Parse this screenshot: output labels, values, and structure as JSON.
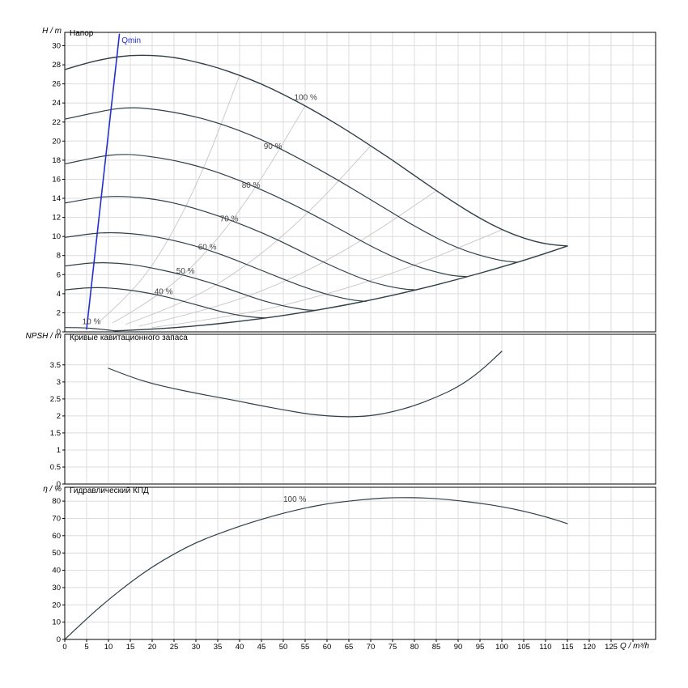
{
  "colors": {
    "background": "#ffffff",
    "axis": "#000000",
    "grid": "#dcdcdc",
    "curve": "#2e3f47",
    "iso": "#c6c6c6",
    "qmin": "#2231cc",
    "label": "#444444"
  },
  "x_axis": {
    "label": "Q / m³/h",
    "ticks": [
      0,
      5,
      10,
      15,
      20,
      25,
      30,
      35,
      40,
      45,
      50,
      55,
      60,
      65,
      70,
      75,
      80,
      85,
      90,
      95,
      100,
      105,
      110,
      115,
      120,
      125
    ],
    "grid_max": 130
  },
  "chart_data": [
    {
      "id": "head",
      "type": "line",
      "title": "Напор",
      "ylabel": "H / m",
      "ylim": [
        0,
        31.4
      ],
      "yticks": [
        0,
        2,
        4,
        6,
        8,
        10,
        12,
        14,
        16,
        18,
        20,
        22,
        24,
        26,
        28,
        30
      ],
      "series": [
        {
          "name": "iso-efficiency-1",
          "role": "iso",
          "points": [
            [
              8,
              1.1
            ],
            [
              16,
              4.3
            ],
            [
              24,
              9.7
            ],
            [
              32,
              17.2
            ],
            [
              40,
              26.9
            ]
          ]
        },
        {
          "name": "iso-efficiency-2",
          "role": "iso",
          "points": [
            [
              11,
              0.95
            ],
            [
              22,
              3.8
            ],
            [
              33,
              8.5
            ],
            [
              44,
              15.2
            ],
            [
              55,
              23.7
            ]
          ]
        },
        {
          "name": "iso-efficiency-3",
          "role": "iso",
          "points": [
            [
              14,
              0.8
            ],
            [
              28,
              3.1
            ],
            [
              42,
              7.0
            ],
            [
              56,
              12.5
            ],
            [
              70,
              19.5
            ]
          ]
        },
        {
          "name": "iso-efficiency-4",
          "role": "iso",
          "points": [
            [
              17,
              0.6
            ],
            [
              34,
              2.4
            ],
            [
              51,
              5.3
            ],
            [
              68,
              9.5
            ],
            [
              85,
              14.8
            ]
          ]
        },
        {
          "name": "iso-efficiency-5",
          "role": "iso",
          "points": [
            [
              20,
              0.45
            ],
            [
              40,
              1.7
            ],
            [
              60,
              3.9
            ],
            [
              80,
              6.9
            ],
            [
              100,
              10.7
            ]
          ]
        },
        {
          "name": "10 %",
          "role": "speed",
          "points": [
            [
              0,
              0.45
            ],
            [
              4,
              0.45
            ],
            [
              8,
              0.3
            ],
            [
              11.5,
              0.1
            ]
          ]
        },
        {
          "name": "40 %",
          "role": "speed",
          "points": [
            [
              0,
              4.4
            ],
            [
              4,
              4.6
            ],
            [
              8,
              4.65
            ],
            [
              12,
              4.55
            ],
            [
              16,
              4.3
            ],
            [
              20,
              4.0
            ],
            [
              24,
              3.6
            ],
            [
              28,
              3.1
            ],
            [
              32,
              2.6
            ],
            [
              36,
              2.1
            ],
            [
              40,
              1.7
            ],
            [
              44,
              1.5
            ],
            [
              46,
              1.45
            ]
          ]
        },
        {
          "name": "50 %",
          "role": "speed",
          "points": [
            [
              0,
              6.9
            ],
            [
              5,
              7.2
            ],
            [
              7.5,
              7.25
            ],
            [
              10,
              7.25
            ],
            [
              15,
              7.1
            ],
            [
              20,
              6.7
            ],
            [
              25,
              6.2
            ],
            [
              30,
              5.6
            ],
            [
              35,
              4.9
            ],
            [
              40,
              4.1
            ],
            [
              45,
              3.3
            ],
            [
              50,
              2.7
            ],
            [
              55,
              2.3
            ],
            [
              57.5,
              2.25
            ]
          ]
        },
        {
          "name": "60 %",
          "role": "speed",
          "points": [
            [
              0,
              9.9
            ],
            [
              6,
              10.3
            ],
            [
              9,
              10.4
            ],
            [
              12,
              10.4
            ],
            [
              18,
              10.2
            ],
            [
              24,
              9.7
            ],
            [
              30,
              9.0
            ],
            [
              36,
              8.1
            ],
            [
              42,
              7.0
            ],
            [
              48,
              5.9
            ],
            [
              54,
              4.8
            ],
            [
              60,
              3.9
            ],
            [
              66,
              3.3
            ],
            [
              69,
              3.2
            ]
          ]
        },
        {
          "name": "70 %",
          "role": "speed",
          "points": [
            [
              0,
              13.5
            ],
            [
              7,
              14.1
            ],
            [
              10.5,
              14.2
            ],
            [
              14,
              14.2
            ],
            [
              21,
              13.9
            ],
            [
              28,
              13.2
            ],
            [
              35,
              12.2
            ],
            [
              42,
              11.0
            ],
            [
              49,
              9.6
            ],
            [
              56,
              8.0
            ],
            [
              63,
              6.5
            ],
            [
              70,
              5.2
            ],
            [
              77,
              4.5
            ],
            [
              80.5,
              4.4
            ]
          ]
        },
        {
          "name": "80 %",
          "role": "speed",
          "points": [
            [
              0,
              17.6
            ],
            [
              8,
              18.4
            ],
            [
              12,
              18.6
            ],
            [
              16,
              18.6
            ],
            [
              24,
              18.1
            ],
            [
              32,
              17.2
            ],
            [
              40,
              15.9
            ],
            [
              48,
              14.3
            ],
            [
              56,
              12.5
            ],
            [
              64,
              10.5
            ],
            [
              72,
              8.5
            ],
            [
              80,
              6.9
            ],
            [
              88,
              5.9
            ],
            [
              92,
              5.8
            ]
          ]
        },
        {
          "name": "90 %",
          "role": "speed",
          "points": [
            [
              0,
              22.3
            ],
            [
              9,
              23.2
            ],
            [
              13.5,
              23.5
            ],
            [
              18,
              23.5
            ],
            [
              27,
              22.9
            ],
            [
              36,
              21.8
            ],
            [
              45,
              20.2
            ],
            [
              54,
              18.1
            ],
            [
              63,
              15.8
            ],
            [
              72,
              13.3
            ],
            [
              81,
              10.8
            ],
            [
              90,
              8.7
            ],
            [
              99,
              7.5
            ],
            [
              103.5,
              7.3
            ]
          ]
        },
        {
          "name": "100 %",
          "role": "speed-max",
          "points": [
            [
              0,
              27.5
            ],
            [
              5,
              28.2
            ],
            [
              10,
              28.7
            ],
            [
              15,
              29.0
            ],
            [
              20,
              29.0
            ],
            [
              25,
              28.8
            ],
            [
              30,
              28.3
            ],
            [
              35,
              27.7
            ],
            [
              40,
              26.9
            ],
            [
              45,
              26.0
            ],
            [
              50,
              24.9
            ],
            [
              55,
              23.7
            ],
            [
              60,
              22.4
            ],
            [
              65,
              21.0
            ],
            [
              70,
              19.5
            ],
            [
              75,
              18.0
            ],
            [
              80,
              16.4
            ],
            [
              85,
              14.8
            ],
            [
              90,
              13.3
            ],
            [
              95,
              11.9
            ],
            [
              100,
              10.7
            ],
            [
              105,
              9.8
            ],
            [
              110,
              9.2
            ],
            [
              115,
              9.0
            ]
          ]
        },
        {
          "name": "end-of-curve-limit",
          "role": "limit",
          "points": [
            [
              11.5,
              0.1
            ],
            [
              20,
              0.27
            ],
            [
              30,
              0.61
            ],
            [
              40,
              1.09
            ],
            [
              50,
              1.7
            ],
            [
              60,
              2.45
            ],
            [
              70,
              3.33
            ],
            [
              80,
              4.35
            ],
            [
              90,
              5.51
            ],
            [
              100,
              6.8
            ],
            [
              108,
              7.93
            ],
            [
              115,
              9.0
            ]
          ]
        },
        {
          "name": "Qmin",
          "role": "qmin",
          "points": [
            [
              5,
              0.3
            ],
            [
              12.5,
              31.2
            ]
          ]
        }
      ],
      "labels": [
        {
          "text": "Qmin",
          "q": 13,
          "v": 30.3,
          "role": "qmin"
        },
        {
          "text": "100 %",
          "q": 52.5,
          "v": 24.3
        },
        {
          "text": "90 %",
          "q": 45.5,
          "v": 19.2
        },
        {
          "text": "80 %",
          "q": 40.5,
          "v": 15.1
        },
        {
          "text": "70 %",
          "q": 35.5,
          "v": 11.6
        },
        {
          "text": "60 %",
          "q": 30.5,
          "v": 8.6
        },
        {
          "text": "50 %",
          "q": 25.5,
          "v": 6.1
        },
        {
          "text": "40 %",
          "q": 20.5,
          "v": 3.95
        },
        {
          "text": "10 %",
          "q": 4,
          "v": 0.8
        }
      ]
    },
    {
      "id": "npsh",
      "type": "line",
      "title": "Кривые кавитационного запаса",
      "ylabel": "NPSH / m",
      "ylim": [
        0,
        4.4
      ],
      "yticks": [
        0,
        0.5,
        1,
        1.5,
        2,
        2.5,
        3,
        3.5
      ],
      "series": [
        {
          "name": "NPSH",
          "role": "speed",
          "points": [
            [
              10,
              3.4
            ],
            [
              15,
              3.15
            ],
            [
              20,
              2.95
            ],
            [
              25,
              2.8
            ],
            [
              30,
              2.67
            ],
            [
              35,
              2.55
            ],
            [
              40,
              2.43
            ],
            [
              45,
              2.3
            ],
            [
              50,
              2.18
            ],
            [
              55,
              2.07
            ],
            [
              60,
              2.0
            ],
            [
              65,
              1.97
            ],
            [
              70,
              2.0
            ],
            [
              75,
              2.12
            ],
            [
              80,
              2.3
            ],
            [
              85,
              2.55
            ],
            [
              90,
              2.85
            ],
            [
              95,
              3.3
            ],
            [
              100,
              3.9
            ]
          ]
        }
      ],
      "labels": []
    },
    {
      "id": "eff",
      "type": "line",
      "title": "Гидравлический КПД",
      "ylabel": "η / %",
      "ylim": [
        0,
        88
      ],
      "yticks": [
        0,
        10,
        20,
        30,
        40,
        50,
        60,
        70,
        80
      ],
      "series": [
        {
          "name": "100 %",
          "role": "speed",
          "points": [
            [
              0,
              0
            ],
            [
              5,
              12
            ],
            [
              10,
              23
            ],
            [
              15,
              33
            ],
            [
              20,
              42
            ],
            [
              25,
              49.5
            ],
            [
              30,
              56
            ],
            [
              35,
              61
            ],
            [
              40,
              65.5
            ],
            [
              45,
              69.5
            ],
            [
              50,
              73
            ],
            [
              55,
              76
            ],
            [
              60,
              78.5
            ],
            [
              65,
              80
            ],
            [
              70,
              81.3
            ],
            [
              75,
              82
            ],
            [
              80,
              82
            ],
            [
              85,
              81.5
            ],
            [
              90,
              80.3
            ],
            [
              95,
              78.8
            ],
            [
              100,
              76.8
            ],
            [
              105,
              74.2
            ],
            [
              110,
              71
            ],
            [
              115,
              67
            ]
          ]
        }
      ],
      "labels": [
        {
          "text": "100 %",
          "q": 50,
          "v": 79.5
        }
      ]
    }
  ]
}
